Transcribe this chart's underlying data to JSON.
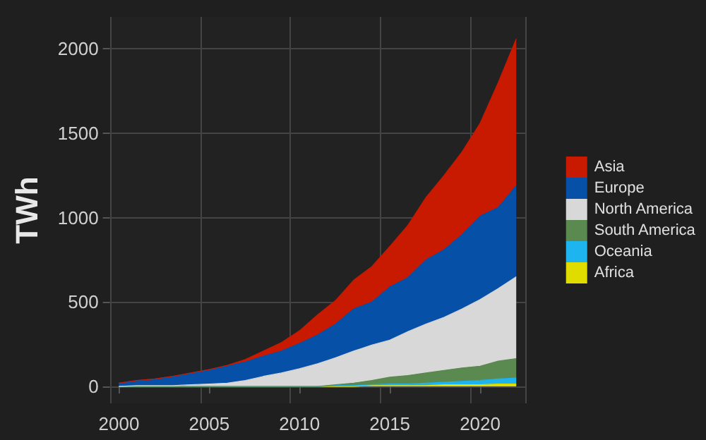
{
  "chart_data": {
    "type": "area",
    "stacked": true,
    "ylabel": "TWh",
    "categories": [
      "2000",
      null,
      null,
      null,
      null,
      "2005",
      null,
      null,
      null,
      null,
      "2010",
      null,
      null,
      null,
      null,
      "2015",
      null,
      null,
      null,
      null,
      "2020",
      null,
      null
    ],
    "series": [
      {
        "name": "Africa",
        "color": "#e0dc00",
        "values": [
          0,
          0,
          0,
          0,
          0,
          0,
          0,
          0,
          0,
          0,
          0,
          0,
          0,
          0,
          5,
          5,
          5,
          5,
          10,
          10,
          10,
          15,
          15
        ]
      },
      {
        "name": "Oceania",
        "color": "#1eb4f0",
        "values": [
          0,
          0,
          0,
          0,
          0,
          0,
          0,
          0,
          0,
          0,
          0,
          0,
          5,
          5,
          5,
          10,
          10,
          15,
          15,
          20,
          25,
          30,
          35
        ]
      },
      {
        "name": "South America",
        "color": "#5a8a50",
        "values": [
          0,
          0,
          0,
          0,
          0,
          0,
          0,
          0,
          0,
          0,
          0,
          0,
          5,
          15,
          25,
          40,
          50,
          60,
          70,
          80,
          85,
          105,
          115
        ]
      },
      {
        "name": "North America",
        "color": "#d8d8d8",
        "values": [
          0,
          5,
          5,
          5,
          10,
          15,
          20,
          35,
          60,
          80,
          105,
          135,
          160,
          190,
          210,
          220,
          260,
          290,
          315,
          350,
          395,
          430,
          485
        ]
      },
      {
        "name": "Europe",
        "color": "#0750a8",
        "values": [
          20,
          30,
          40,
          55,
          70,
          85,
          100,
          110,
          120,
          130,
          150,
          170,
          200,
          250,
          255,
          315,
          320,
          380,
          400,
          440,
          495,
          480,
          540
        ]
      },
      {
        "name": "Asia",
        "color": "#c81a00",
        "values": [
          0,
          0,
          0,
          0,
          0,
          0,
          5,
          15,
          30,
          50,
          75,
          120,
          140,
          170,
          210,
          240,
          310,
          370,
          440,
          490,
          550,
          740,
          870
        ]
      }
    ],
    "ylim": [
      -100,
      2190
    ],
    "yticks": [
      0,
      500,
      1000,
      1500,
      2000
    ],
    "grid": true,
    "legend": "right"
  }
}
